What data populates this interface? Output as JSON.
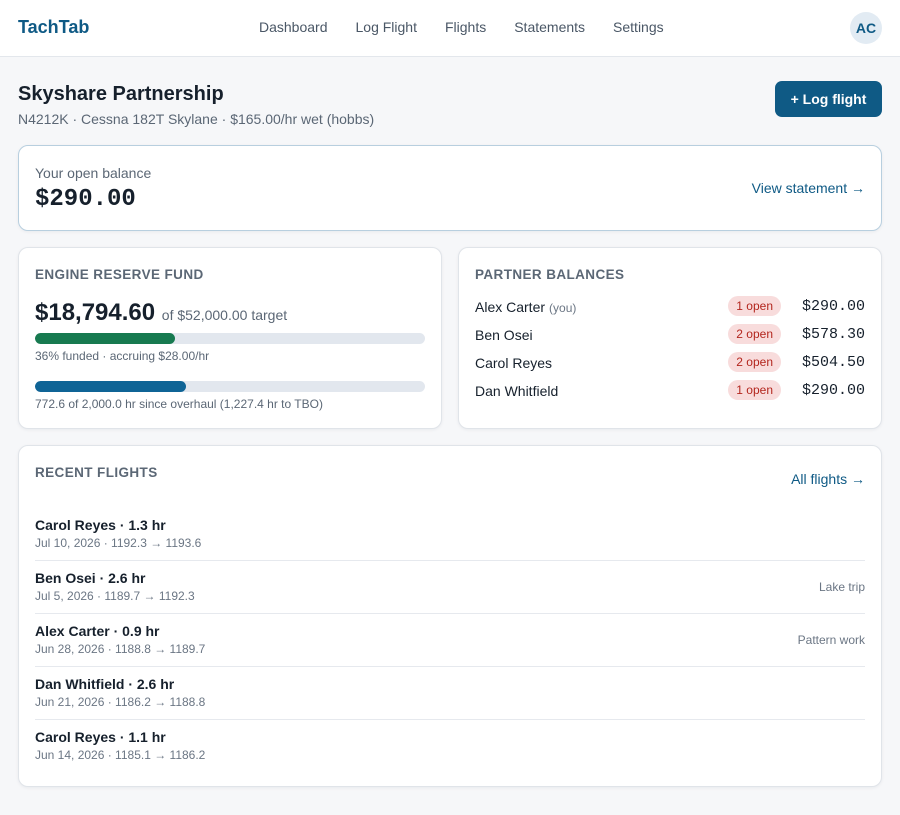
{
  "app": {
    "brand": "TachTab",
    "avatar_initials": "AC"
  },
  "nav": {
    "items": [
      "Dashboard",
      "Log Flight",
      "Flights",
      "Statements",
      "Settings"
    ]
  },
  "header": {
    "title": "Skyshare Partnership",
    "subtitle": "N4212K · Cessna 182T Skylane · $165.00/hr wet (hobbs)",
    "log_button": "+ Log flight"
  },
  "balance": {
    "label": "Your open balance",
    "value": "$290.00",
    "link": "View statement →"
  },
  "reserve": {
    "title": "Engine reserve fund",
    "amount": "$18,794.60",
    "target": "of $52,000.00 target",
    "funded_fraction": 0.36,
    "funded_caption": "36% funded · accruing $28.00/hr",
    "overhaul_fraction": 0.3863,
    "overhaul_caption": "772.6 of 2,000.0 hr since overhaul (1,227.4 hr to TBO)"
  },
  "partners": {
    "title": "Partner balances",
    "rows": [
      {
        "name": "Alex Carter",
        "tag": "(you)",
        "badge": "1 open",
        "amount": "$290.00"
      },
      {
        "name": "Ben Osei",
        "tag": "",
        "badge": "2 open",
        "amount": "$578.30"
      },
      {
        "name": "Carol Reyes",
        "tag": "",
        "badge": "2 open",
        "amount": "$504.50"
      },
      {
        "name": "Dan Whitfield",
        "tag": "",
        "badge": "1 open",
        "amount": "$290.00"
      }
    ]
  },
  "flights": {
    "title": "Recent flights",
    "link": "All flights →",
    "items": [
      {
        "title": "Carol Reyes · 1.3 hr",
        "sub": "Jul 10, 2026 · 1192.3 → 1193.6",
        "note": ""
      },
      {
        "title": "Ben Osei · 2.6 hr",
        "sub": "Jul 5, 2026 · 1189.7 → 1192.3",
        "note": "Lake trip"
      },
      {
        "title": "Alex Carter · 0.9 hr",
        "sub": "Jun 28, 2026 · 1188.8 → 1189.7",
        "note": "Pattern work"
      },
      {
        "title": "Dan Whitfield · 2.6 hr",
        "sub": "Jun 21, 2026 · 1186.2 → 1188.8",
        "note": ""
      },
      {
        "title": "Carol Reyes · 1.1 hr",
        "sub": "Jun 14, 2026 · 1185.1 → 1186.2",
        "note": ""
      }
    ]
  },
  "colors": {
    "accent": "#0f5a85",
    "reserve_bar": "#177a50",
    "overhaul_bar": "#0f6496",
    "badge_bg": "#f8dcdc",
    "badge_text": "#b3261e"
  }
}
